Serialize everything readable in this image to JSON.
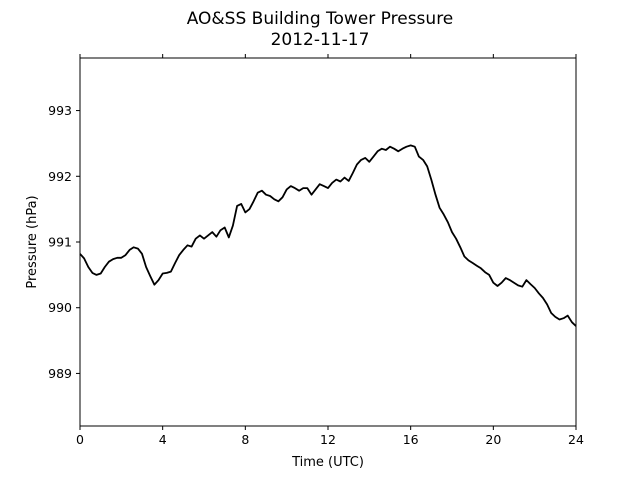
{
  "chart_data": {
    "type": "line",
    "title": "AO&SS Building Tower Pressure",
    "subtitle": "2012-11-17",
    "xlabel": "Time (UTC)",
    "ylabel": "Pressure (hPa)",
    "xlim": [
      0,
      24
    ],
    "ylim": [
      988.2,
      993.8
    ],
    "xticks": [
      0,
      4,
      8,
      12,
      16,
      20,
      24
    ],
    "yticks": [
      989,
      990,
      991,
      992,
      993
    ],
    "grid": false,
    "line_color": "#000000",
    "series": [
      {
        "x": [
          0,
          0.2,
          0.4,
          0.6,
          0.8,
          1.0,
          1.2,
          1.4,
          1.6,
          1.8,
          2.0,
          2.2,
          2.4,
          2.6,
          2.8,
          3.0,
          3.2,
          3.4,
          3.6,
          3.8,
          4.0,
          4.2,
          4.4,
          4.6,
          4.8,
          5.0,
          5.2,
          5.4,
          5.6,
          5.8,
          6.0,
          6.2,
          6.4,
          6.6,
          6.8,
          7.0,
          7.2,
          7.4,
          7.6,
          7.8,
          8.0,
          8.2,
          8.4,
          8.6,
          8.8,
          9.0,
          9.2,
          9.4,
          9.6,
          9.8,
          10.0,
          10.2,
          10.4,
          10.6,
          10.8,
          11.0,
          11.2,
          11.4,
          11.6,
          11.8,
          12.0,
          12.2,
          12.4,
          12.6,
          12.8,
          13.0,
          13.2,
          13.4,
          13.6,
          13.8,
          14.0,
          14.2,
          14.4,
          14.6,
          14.8,
          15.0,
          15.2,
          15.4,
          15.6,
          15.8,
          16.0,
          16.2,
          16.4,
          16.6,
          16.8,
          17.0,
          17.2,
          17.4,
          17.6,
          17.8,
          18.0,
          18.2,
          18.4,
          18.6,
          18.8,
          19.0,
          19.2,
          19.4,
          19.6,
          19.8,
          20.0,
          20.2,
          20.4,
          20.6,
          20.8,
          21.0,
          21.2,
          21.4,
          21.6,
          21.8,
          22.0,
          22.2,
          22.4,
          22.6,
          22.8,
          23.0,
          23.2,
          23.4,
          23.6,
          23.8,
          24.0
        ],
        "y": [
          990.82,
          990.75,
          990.62,
          990.53,
          990.5,
          990.52,
          990.62,
          990.7,
          990.74,
          990.76,
          990.76,
          990.8,
          990.88,
          990.92,
          990.9,
          990.82,
          990.62,
          990.48,
          990.35,
          990.42,
          990.52,
          990.53,
          990.55,
          990.68,
          990.8,
          990.88,
          990.95,
          990.93,
          991.05,
          991.1,
          991.05,
          991.1,
          991.15,
          991.08,
          991.18,
          991.22,
          991.07,
          991.25,
          991.55,
          991.58,
          991.45,
          991.5,
          991.62,
          991.75,
          991.78,
          991.72,
          991.7,
          991.65,
          991.62,
          991.68,
          991.8,
          991.85,
          991.82,
          991.78,
          991.82,
          991.82,
          991.72,
          991.8,
          991.88,
          991.85,
          991.82,
          991.9,
          991.95,
          991.92,
          991.98,
          991.93,
          992.05,
          992.18,
          992.25,
          992.28,
          992.22,
          992.3,
          992.38,
          992.42,
          992.4,
          992.45,
          992.42,
          992.38,
          992.42,
          992.45,
          992.47,
          992.45,
          992.3,
          992.25,
          992.15,
          991.95,
          991.72,
          991.52,
          991.42,
          991.3,
          991.15,
          991.05,
          990.92,
          990.78,
          990.72,
          990.68,
          990.64,
          990.6,
          990.54,
          990.5,
          990.38,
          990.33,
          990.38,
          990.45,
          990.42,
          990.38,
          990.34,
          990.32,
          990.42,
          990.36,
          990.3,
          990.22,
          990.15,
          990.05,
          989.92,
          989.86,
          989.82,
          989.84,
          989.88,
          989.78,
          989.72
        ]
      }
    ]
  }
}
